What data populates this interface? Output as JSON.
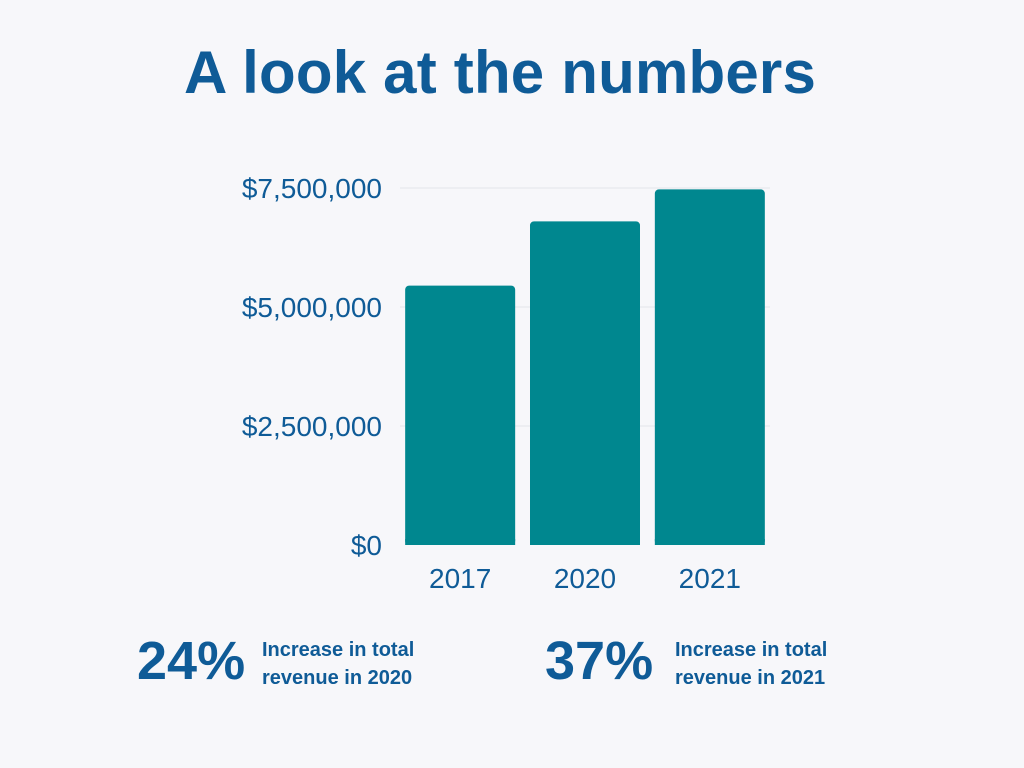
{
  "title": "A look at the numbers",
  "chart_data": {
    "type": "bar",
    "categories": [
      "2017",
      "2020",
      "2021"
    ],
    "values": [
      5450000,
      6800000,
      7470000
    ],
    "ylim": [
      0,
      7500000
    ],
    "yticks": [
      0,
      2500000,
      5000000,
      7500000
    ],
    "ytick_labels": [
      "$0",
      "$2,500,000",
      "$5,000,000",
      "$7,500,000"
    ],
    "grid": true,
    "bar_color": "#00878f",
    "text_color": "#0f5b97"
  },
  "stats": [
    {
      "value": "24%",
      "line1": "Increase in total",
      "line2": "revenue in 2020"
    },
    {
      "value": "37%",
      "line1": "Increase in total",
      "line2": "revenue in 2021"
    }
  ]
}
